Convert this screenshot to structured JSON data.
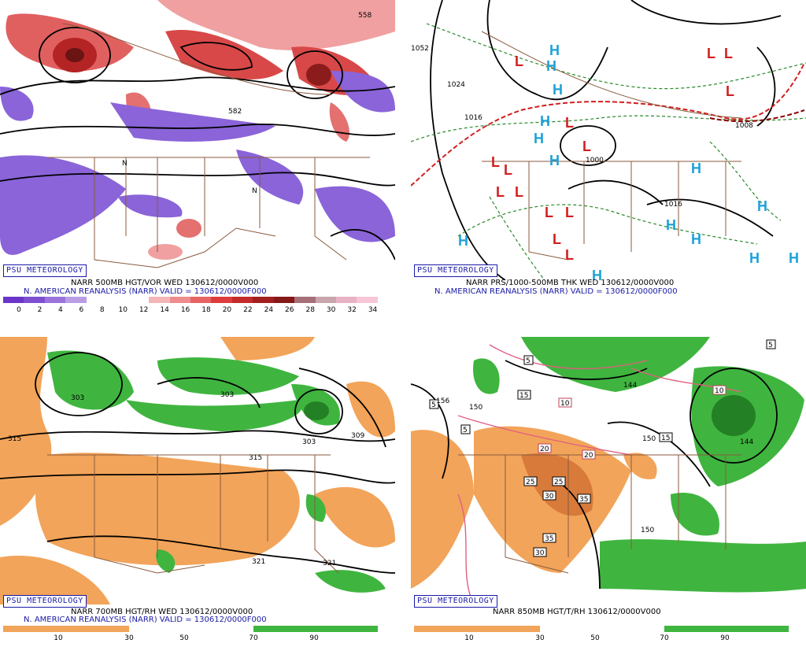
{
  "panels": {
    "p1": {
      "badge": "PSU METEOROLOGY",
      "caption": "NARR 500MB HGT/VOR WED 130612/0000V000",
      "subcaption": "N. AMERICAN REANALYSIS (NARR) VALID = 130612/0000F000",
      "scale_labels": [
        "0",
        "2",
        "4",
        "6",
        "8",
        "10",
        "12",
        "14",
        "16",
        "18",
        "20",
        "22",
        "24",
        "26",
        "28",
        "30",
        "32",
        "34"
      ],
      "scale_colors": [
        "#6a35c8",
        "#7e4fd0",
        "#9a74dc",
        "#b99ee6",
        "#ffffff",
        "#ffffff",
        "#ffffff",
        "#f4b6b6",
        "#ee8d8d",
        "#e76363",
        "#de3c3c",
        "#c42a2a",
        "#a31f1f",
        "#861818",
        "#a57078",
        "#c9a5ae",
        "#e9b2c5",
        "#f7c6d8"
      ],
      "contour_labels": [
        "558",
        "582",
        "N"
      ]
    },
    "p2": {
      "badge": "PSU METEOROLOGY",
      "caption": "NARR PRS/1000-500MB THK WED 130612/0000V000",
      "subcaption": "N. AMERICAN REANALYSIS (NARR) VALID = 130612/0000F000",
      "pressure_labels": [
        "1024",
        "1016",
        "1008",
        "1000",
        "1016",
        "1052"
      ],
      "highs": "H",
      "lows": "L"
    },
    "p3": {
      "badge": "PSU METEOROLOGY",
      "caption": "NARR 700MB HGT/RH WED 130612/0000V000",
      "subcaption": "N. AMERICAN REANALYSIS (NARR) VALID = 130612/0000F000",
      "scale_labels": [
        "10",
        "30",
        "50",
        "70",
        "90"
      ],
      "contour_labels": [
        "303",
        "309",
        "315",
        "321"
      ]
    },
    "p4": {
      "badge": "PSU METEOROLOGY",
      "caption": "NARR 850MB HGT/T/RH 130612/0000V000",
      "scale_labels": [
        "10",
        "30",
        "50",
        "70",
        "90"
      ],
      "contour_labels": [
        "144",
        "150",
        "156"
      ],
      "temp_boxes": [
        "5",
        "10",
        "15",
        "20",
        "25",
        "30",
        "35"
      ]
    }
  },
  "colors": {
    "vort_red": "#d94a4a",
    "vort_purple": "#7c52d4",
    "rh_green": "#3fb53f",
    "dry_orange": "#f2a45a",
    "border_brown": "#8a5a3c",
    "psu_blue": "#1a1aa6"
  }
}
